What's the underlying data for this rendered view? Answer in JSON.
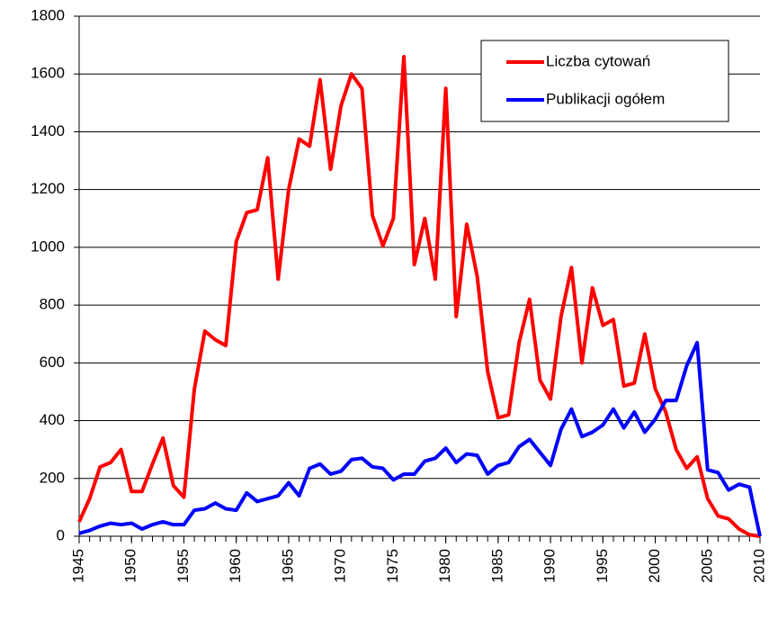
{
  "chart_data": {
    "type": "line",
    "x": [
      1945,
      1946,
      1947,
      1948,
      1949,
      1950,
      1951,
      1952,
      1953,
      1954,
      1955,
      1956,
      1957,
      1958,
      1959,
      1960,
      1961,
      1962,
      1963,
      1964,
      1965,
      1966,
      1967,
      1968,
      1969,
      1970,
      1971,
      1972,
      1973,
      1974,
      1975,
      1976,
      1977,
      1978,
      1979,
      1980,
      1981,
      1982,
      1983,
      1984,
      1985,
      1986,
      1987,
      1988,
      1989,
      1990,
      1991,
      1992,
      1993,
      1994,
      1995,
      1996,
      1997,
      1998,
      1999,
      2000,
      2001,
      2002,
      2003,
      2004,
      2005,
      2006,
      2007,
      2008,
      2009,
      2010
    ],
    "series": [
      {
        "name": "Liczba cytowań",
        "color": "#ff0000",
        "values": [
          50,
          130,
          240,
          255,
          300,
          155,
          155,
          250,
          340,
          175,
          135,
          510,
          710,
          680,
          660,
          1020,
          1120,
          1130,
          1310,
          890,
          1200,
          1375,
          1350,
          1580,
          1270,
          1490,
          1600,
          1550,
          1110,
          1005,
          1100,
          1660,
          940,
          1100,
          890,
          1550,
          760,
          1080,
          900,
          570,
          410,
          420,
          670,
          820,
          540,
          475,
          760,
          930,
          600,
          860,
          730,
          750,
          520,
          530,
          700,
          510,
          430,
          300,
          235,
          275,
          130,
          70,
          60,
          25,
          5,
          0
        ]
      },
      {
        "name": "Publikacji ogółem",
        "color": "#0000ff",
        "values": [
          10,
          20,
          35,
          45,
          40,
          45,
          25,
          40,
          50,
          40,
          40,
          90,
          95,
          115,
          95,
          90,
          150,
          120,
          130,
          140,
          185,
          140,
          235,
          250,
          215,
          225,
          265,
          270,
          240,
          235,
          195,
          215,
          215,
          260,
          270,
          305,
          255,
          285,
          280,
          215,
          245,
          255,
          310,
          335,
          290,
          245,
          370,
          440,
          345,
          360,
          385,
          440,
          375,
          430,
          360,
          405,
          470,
          470,
          590,
          670,
          230,
          220,
          160,
          180,
          170,
          0
        ]
      }
    ],
    "xlim": [
      1945,
      2010
    ],
    "xticks": [
      1945,
      1950,
      1955,
      1960,
      1965,
      1970,
      1975,
      1980,
      1985,
      1990,
      1995,
      2000,
      2005,
      2010
    ],
    "ylim": [
      0,
      1800
    ],
    "yticks": [
      0,
      200,
      400,
      600,
      800,
      1000,
      1200,
      1400,
      1600,
      1800
    ],
    "grid": true,
    "legend": "upper right"
  }
}
